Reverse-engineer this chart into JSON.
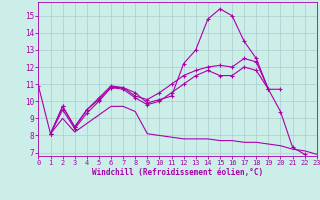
{
  "bg_color": "#cceee8",
  "line_color": "#aa00aa",
  "grid_color": "#aacccc",
  "xlim": [
    0,
    23
  ],
  "ylim": [
    6.8,
    15.8
  ],
  "xticks": [
    0,
    1,
    2,
    3,
    4,
    5,
    6,
    7,
    8,
    9,
    10,
    11,
    12,
    13,
    14,
    15,
    16,
    17,
    18,
    19,
    20,
    21,
    22,
    23
  ],
  "yticks": [
    7,
    8,
    9,
    10,
    11,
    12,
    13,
    14,
    15
  ],
  "xlabel": "Windchill (Refroidissement éolien,°C)",
  "lines": [
    {
      "x": [
        0,
        1,
        2,
        3,
        4,
        5,
        6,
        7,
        8,
        9,
        10,
        11,
        12,
        13,
        14,
        15,
        16,
        17,
        18,
        19,
        20,
        21,
        22
      ],
      "y": [
        10.9,
        8.1,
        9.7,
        8.5,
        9.5,
        10.2,
        10.9,
        10.8,
        10.5,
        9.9,
        10.1,
        10.3,
        12.2,
        13.0,
        14.8,
        15.4,
        15.0,
        13.5,
        12.5,
        10.7,
        9.4,
        7.3,
        6.9
      ],
      "marker": "+"
    },
    {
      "x": [
        1,
        2,
        3,
        4,
        5,
        6,
        7,
        8,
        9,
        10,
        11,
        12,
        13,
        14,
        15,
        16,
        17,
        18,
        19
      ],
      "y": [
        8.1,
        9.7,
        8.5,
        9.5,
        10.1,
        10.8,
        10.8,
        10.3,
        10.1,
        10.5,
        11.0,
        11.5,
        11.8,
        12.0,
        12.1,
        12.0,
        12.5,
        12.3,
        10.7
      ],
      "marker": "+"
    },
    {
      "x": [
        1,
        2,
        3,
        4,
        5,
        6,
        7,
        8,
        9,
        10,
        11,
        12,
        13,
        14,
        15,
        16,
        17,
        18,
        19,
        20
      ],
      "y": [
        8.1,
        9.5,
        8.4,
        9.3,
        10.0,
        10.8,
        10.7,
        10.2,
        9.8,
        10.0,
        10.5,
        11.0,
        11.5,
        11.8,
        11.5,
        11.5,
        12.0,
        11.8,
        10.7,
        10.7
      ],
      "marker": "+"
    },
    {
      "x": [
        1,
        2,
        3,
        4,
        5,
        6,
        7,
        8,
        9,
        10,
        11,
        12,
        13,
        14,
        15,
        16,
        17,
        18,
        19,
        20,
        21,
        22,
        23
      ],
      "y": [
        8.1,
        9.0,
        8.2,
        8.7,
        9.2,
        9.7,
        9.7,
        9.4,
        8.1,
        8.0,
        7.9,
        7.8,
        7.8,
        7.8,
        7.7,
        7.7,
        7.6,
        7.6,
        7.5,
        7.4,
        7.2,
        7.1,
        6.9
      ],
      "marker": null
    }
  ]
}
